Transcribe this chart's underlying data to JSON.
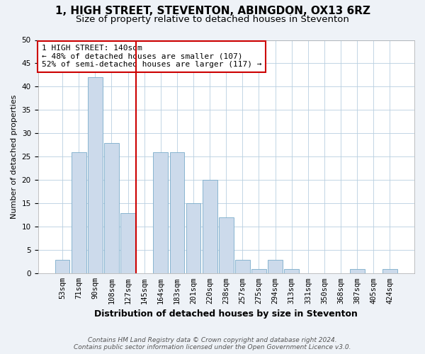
{
  "title": "1, HIGH STREET, STEVENTON, ABINGDON, OX13 6RZ",
  "subtitle": "Size of property relative to detached houses in Steventon",
  "xlabel": "Distribution of detached houses by size in Steventon",
  "ylabel": "Number of detached properties",
  "bar_labels": [
    "53sqm",
    "71sqm",
    "90sqm",
    "108sqm",
    "127sqm",
    "145sqm",
    "164sqm",
    "183sqm",
    "201sqm",
    "220sqm",
    "238sqm",
    "257sqm",
    "275sqm",
    "294sqm",
    "313sqm",
    "331sqm",
    "350sqm",
    "368sqm",
    "387sqm",
    "405sqm",
    "424sqm"
  ],
  "bar_heights": [
    3,
    26,
    42,
    28,
    13,
    0,
    26,
    26,
    15,
    20,
    12,
    3,
    1,
    3,
    1,
    0,
    0,
    0,
    1,
    0,
    1
  ],
  "bar_color": "#ccdaeb",
  "bar_edge_color": "#7aaccb",
  "vline_color": "#cc0000",
  "annotation_text": "1 HIGH STREET: 140sqm\n← 48% of detached houses are smaller (107)\n52% of semi-detached houses are larger (117) →",
  "annotation_box_color": "#ffffff",
  "annotation_box_edge_color": "#cc0000",
  "ylim": [
    0,
    50
  ],
  "yticks": [
    0,
    5,
    10,
    15,
    20,
    25,
    30,
    35,
    40,
    45,
    50
  ],
  "footnote": "Contains HM Land Registry data © Crown copyright and database right 2024.\nContains public sector information licensed under the Open Government Licence v3.0.",
  "bg_color": "#eef2f7",
  "plot_bg_color": "#ffffff",
  "title_fontsize": 11,
  "subtitle_fontsize": 9.5,
  "xlabel_fontsize": 9,
  "ylabel_fontsize": 8,
  "tick_fontsize": 7.5,
  "annot_fontsize": 8,
  "footnote_fontsize": 6.5
}
